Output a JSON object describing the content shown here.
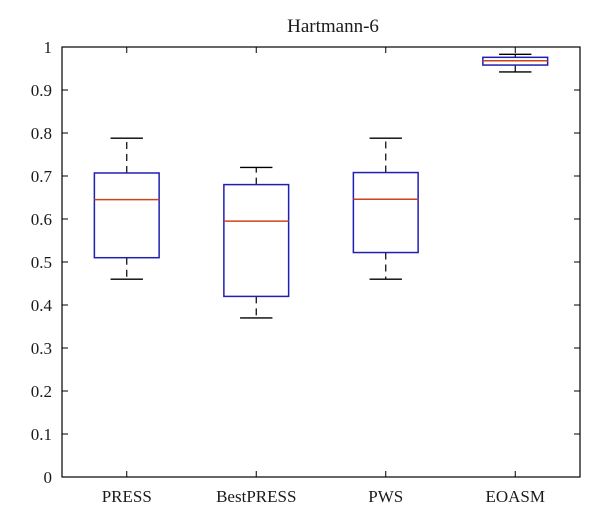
{
  "chart_data": {
    "type": "boxplot",
    "title": "Hartmann-6",
    "xlabel": "",
    "ylabel": "",
    "ylim": [
      0,
      1
    ],
    "yticks": [
      0,
      0.1,
      0.2,
      0.3,
      0.4,
      0.5,
      0.6,
      0.7,
      0.8,
      0.9,
      1
    ],
    "ytick_labels": [
      "0",
      "0.1",
      "0.2",
      "0.3",
      "0.4",
      "0.5",
      "0.6",
      "0.7",
      "0.8",
      "0.9",
      "1"
    ],
    "categories": [
      "PRESS",
      "BestPRESS",
      "PWS",
      "EOASM"
    ],
    "boxes": [
      {
        "category": "PRESS",
        "whisker_low": 0.46,
        "q1": 0.51,
        "median": 0.645,
        "q3": 0.707,
        "whisker_high": 0.788
      },
      {
        "category": "BestPRESS",
        "whisker_low": 0.37,
        "q1": 0.42,
        "median": 0.595,
        "q3": 0.68,
        "whisker_high": 0.72
      },
      {
        "category": "PWS",
        "whisker_low": 0.46,
        "q1": 0.522,
        "median": 0.646,
        "q3": 0.708,
        "whisker_high": 0.788
      },
      {
        "category": "EOASM",
        "whisker_low": 0.942,
        "q1": 0.958,
        "median": 0.968,
        "q3": 0.976,
        "whisker_high": 0.983
      }
    ],
    "colors": {
      "box": "#1f1fb4",
      "median": "#d2401e",
      "whisker": "#000000",
      "axis": "#000000"
    },
    "grid": false
  }
}
